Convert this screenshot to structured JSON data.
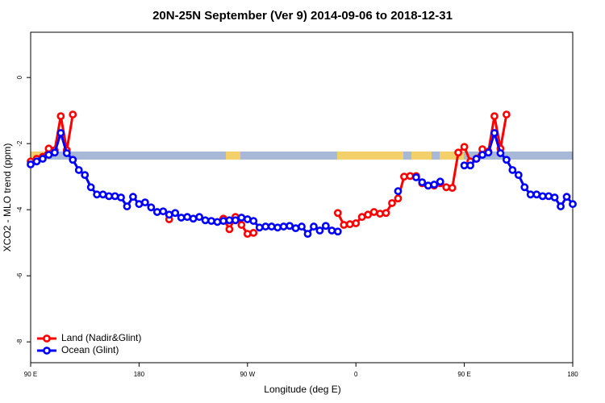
{
  "chart_data": {
    "type": "line",
    "title": "20N-25N September (Ver 9)   2014-09-06 to 2018-12-31",
    "xlabel": "Longitude (deg E)",
    "ylabel": "XCO2 - MLO trend (ppm)",
    "x": [
      90,
      95,
      100,
      105,
      110,
      115,
      120,
      125,
      130,
      135,
      140,
      145,
      150,
      155,
      160,
      165,
      170,
      175,
      180,
      185,
      190,
      195,
      200,
      205,
      210,
      215,
      220,
      225,
      230,
      235,
      240,
      245,
      250,
      255,
      260,
      265,
      270,
      275,
      280,
      285,
      290,
      295,
      300,
      305,
      310,
      315,
      320,
      325,
      330,
      335,
      340,
      345,
      350,
      355,
      360,
      365,
      370,
      375,
      380,
      385,
      390,
      395,
      400,
      405,
      410,
      415,
      420,
      425,
      430,
      435,
      440,
      445,
      450,
      455,
      460,
      465,
      470,
      475,
      480,
      485,
      490,
      495,
      500,
      505,
      510,
      515,
      520,
      525,
      530,
      535,
      540
    ],
    "xlim": [
      90,
      540
    ],
    "xticks": [
      {
        "value": 90,
        "label": "90 E"
      },
      180,
      {
        "value": 270,
        "label": "90 W"
      },
      {
        "value": 360,
        "label": "0"
      },
      {
        "value": 450,
        "label": "90 E"
      },
      {
        "value": 540,
        "label": "180"
      }
    ],
    "ylim": [
      -8.63,
      1.37
    ],
    "yticks": [
      0,
      -2,
      -4,
      -6,
      -8
    ],
    "legend": "bottom-left",
    "series": [
      {
        "name": "Land (Nadir&Glint)",
        "color": "#ff0000",
        "values": [
          -2.54,
          -2.46,
          -2.4,
          -2.15,
          -2.2,
          -1.17,
          -2.2,
          -1.12,
          null,
          null,
          null,
          null,
          null,
          null,
          null,
          null,
          null,
          null,
          null,
          null,
          null,
          null,
          null,
          -4.29,
          null,
          null,
          null,
          null,
          null,
          null,
          null,
          null,
          -4.27,
          -4.59,
          -4.22,
          -4.46,
          -4.73,
          -4.7,
          null,
          null,
          null,
          null,
          null,
          null,
          null,
          null,
          null,
          null,
          null,
          null,
          null,
          -4.1,
          -4.46,
          -4.44,
          -4.41,
          -4.22,
          -4.15,
          -4.07,
          -4.12,
          -4.1,
          -3.8,
          -3.66,
          -3.0,
          -2.98,
          -2.98,
          -3.2,
          -3.27,
          -3.27,
          -3.2,
          -3.32,
          -3.34,
          -2.27,
          -2.1,
          -2.54,
          -2.46,
          -2.17,
          -2.24,
          -1.17,
          -2.15,
          -1.12,
          null,
          null,
          null,
          null,
          null,
          null,
          null,
          null,
          null,
          null,
          null
        ]
      },
      {
        "name": "Ocean (Glint)",
        "color": "#0000ff",
        "values": [
          -2.63,
          -2.54,
          -2.46,
          -2.34,
          -2.27,
          -1.68,
          -2.29,
          -2.49,
          -2.8,
          -2.95,
          -3.32,
          -3.54,
          -3.54,
          -3.59,
          -3.59,
          -3.63,
          -3.9,
          -3.61,
          -3.83,
          -3.78,
          -3.93,
          -4.07,
          -4.05,
          -4.15,
          -4.1,
          -4.24,
          -4.22,
          -4.27,
          -4.22,
          -4.32,
          -4.34,
          -4.37,
          -4.34,
          -4.32,
          -4.32,
          -4.24,
          -4.29,
          -4.34,
          -4.54,
          -4.51,
          -4.51,
          -4.54,
          -4.51,
          -4.49,
          -4.56,
          -4.51,
          -4.73,
          -4.51,
          -4.63,
          -4.49,
          -4.63,
          -4.66,
          null,
          null,
          null,
          null,
          null,
          null,
          null,
          null,
          null,
          -3.44,
          null,
          null,
          -3.02,
          -3.17,
          -3.27,
          -3.24,
          -3.15,
          null,
          null,
          null,
          -2.66,
          -2.66,
          -2.46,
          -2.34,
          -2.27,
          -1.68,
          -2.29,
          -2.49,
          -2.8,
          -2.95,
          -3.32,
          -3.54,
          -3.54,
          -3.59,
          -3.59,
          -3.63,
          -3.9,
          -3.61,
          -3.83
        ]
      }
    ]
  }
}
